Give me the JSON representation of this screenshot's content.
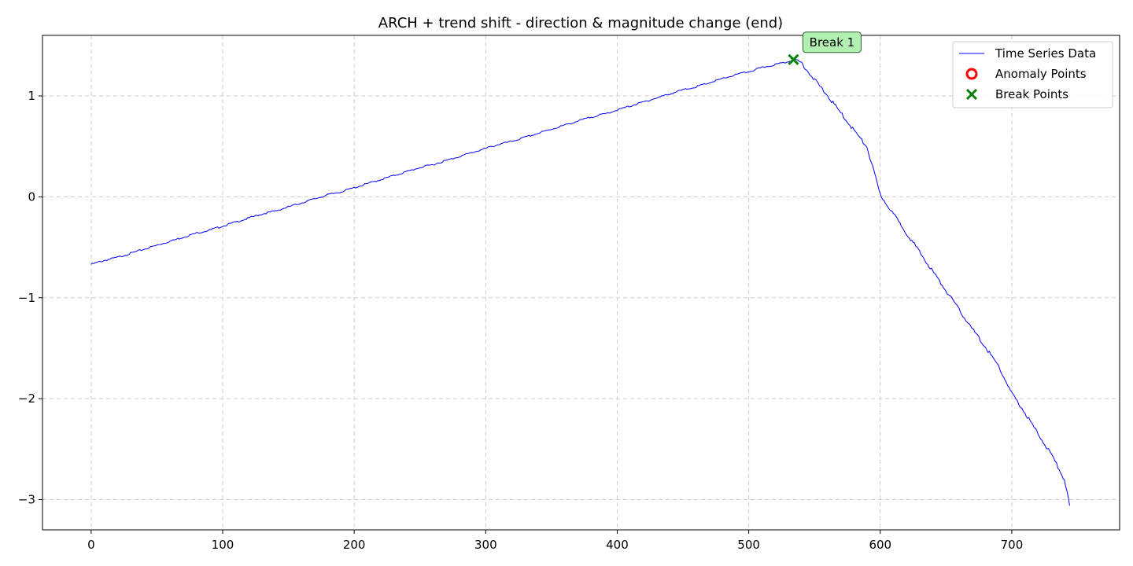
{
  "chart_data": {
    "type": "line",
    "title": "ARCH + trend shift - direction & magnitude change (end)",
    "xlabel": "",
    "ylabel": "",
    "xlim": [
      -37,
      782
    ],
    "ylim": [
      -3.3,
      1.6
    ],
    "xticks": [
      0,
      100,
      200,
      300,
      400,
      500,
      600,
      700
    ],
    "xtick_labels": [
      "0",
      "100",
      "200",
      "300",
      "400",
      "500",
      "600",
      "700"
    ],
    "yticks": [
      1,
      0,
      -1,
      -2,
      -3
    ],
    "ytick_labels": [
      "1",
      "0",
      "−1",
      "−2",
      "−3"
    ],
    "grid": true,
    "legend_position": "top-right",
    "series": [
      {
        "name": "Time Series Data",
        "color": "#0000ff",
        "style": "line",
        "x": [
          0,
          10,
          20,
          30,
          40,
          50,
          60,
          70,
          80,
          90,
          100,
          110,
          120,
          130,
          140,
          150,
          160,
          170,
          180,
          190,
          200,
          210,
          220,
          230,
          240,
          250,
          260,
          270,
          280,
          290,
          300,
          310,
          320,
          330,
          340,
          350,
          360,
          370,
          380,
          390,
          400,
          410,
          420,
          430,
          440,
          450,
          460,
          470,
          480,
          490,
          500,
          510,
          520,
          530,
          535,
          540,
          550,
          560,
          570,
          580,
          590,
          600,
          610,
          620,
          630,
          640,
          650,
          660,
          670,
          680,
          690,
          700,
          710,
          720,
          730,
          740,
          744
        ],
        "y": [
          -0.67,
          -0.63,
          -0.6,
          -0.56,
          -0.52,
          -0.48,
          -0.44,
          -0.4,
          -0.36,
          -0.33,
          -0.29,
          -0.25,
          -0.21,
          -0.17,
          -0.14,
          -0.1,
          -0.06,
          -0.02,
          0.02,
          0.05,
          0.09,
          0.13,
          0.17,
          0.21,
          0.25,
          0.29,
          0.32,
          0.36,
          0.4,
          0.44,
          0.48,
          0.52,
          0.55,
          0.59,
          0.63,
          0.67,
          0.71,
          0.75,
          0.79,
          0.82,
          0.86,
          0.9,
          0.94,
          0.98,
          1.02,
          1.06,
          1.09,
          1.13,
          1.17,
          1.21,
          1.24,
          1.28,
          1.31,
          1.34,
          1.36,
          1.33,
          1.16,
          1.0,
          0.83,
          0.66,
          0.49,
          0.02,
          -0.17,
          -0.36,
          -0.55,
          -0.74,
          -0.93,
          -1.12,
          -1.31,
          -1.49,
          -1.68,
          -1.95,
          -2.14,
          -2.35,
          -2.55,
          -2.8,
          -3.06
        ]
      },
      {
        "name": "Anomaly Points",
        "color": "#ff0000",
        "style": "marker-o",
        "x": [],
        "y": []
      },
      {
        "name": "Break Points",
        "color": "#008000",
        "style": "marker-x",
        "x": [
          534
        ],
        "y": [
          1.36
        ]
      }
    ],
    "annotations": [
      {
        "text": "Break 1",
        "x": 534,
        "y": 1.36,
        "bg": "#b2f0b2",
        "border": "#2e5e2e"
      }
    ]
  }
}
